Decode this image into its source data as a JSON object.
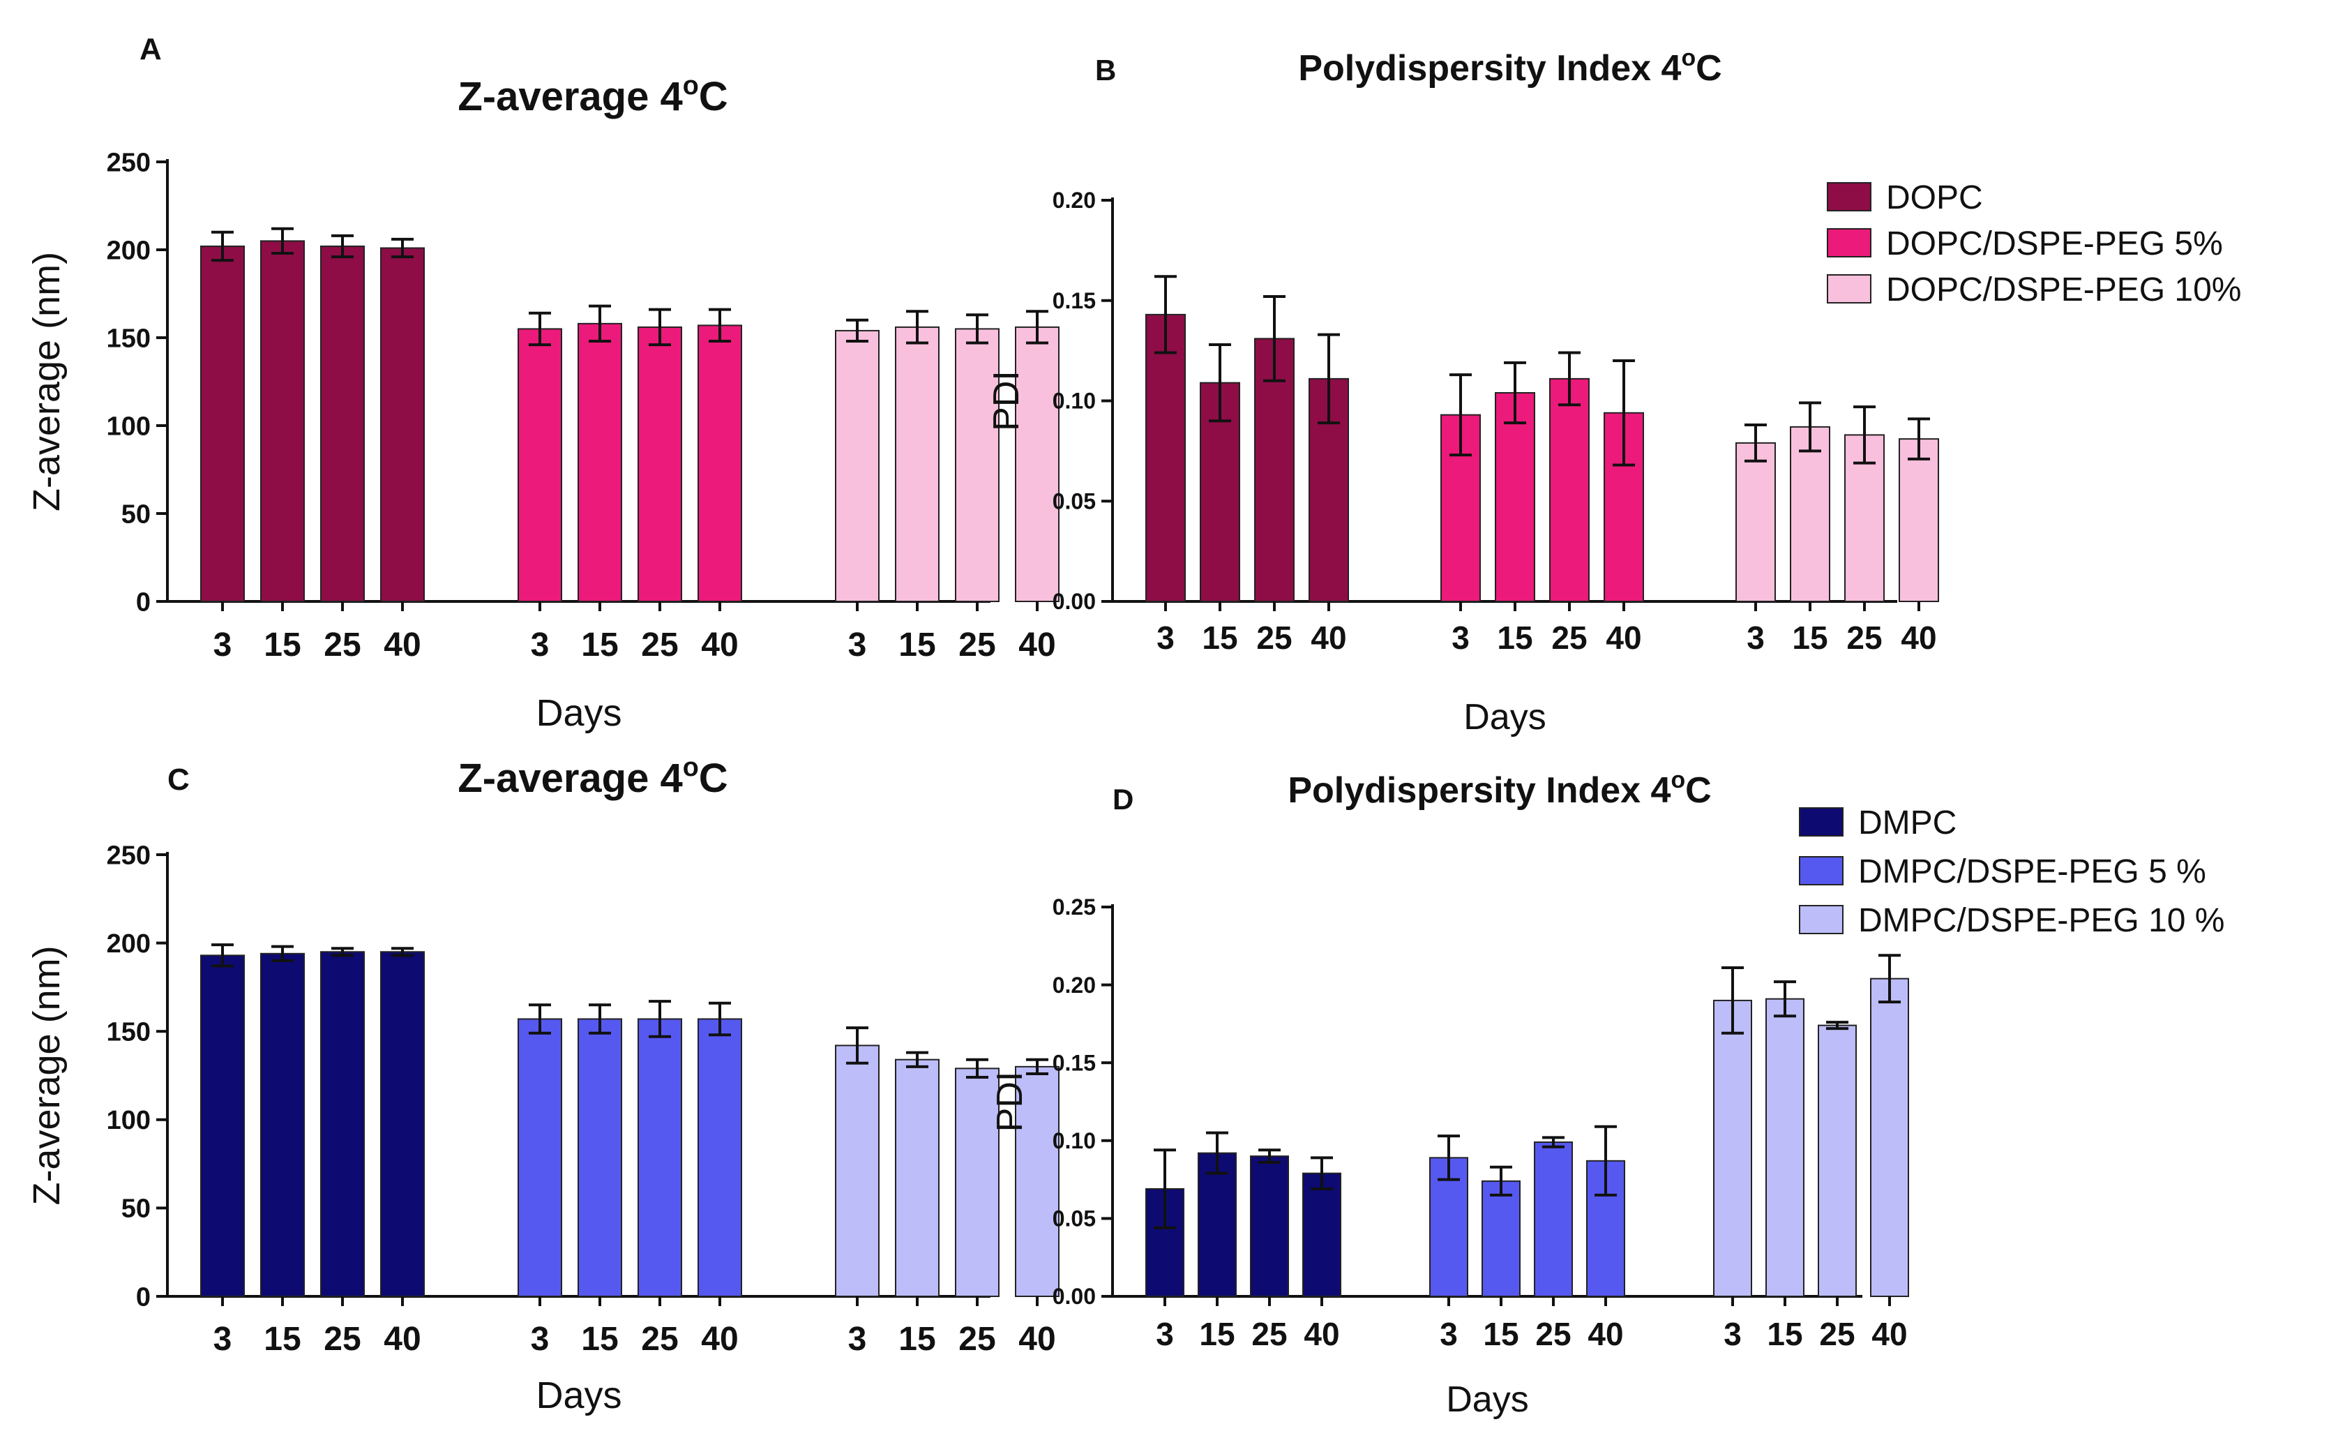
{
  "figure": {
    "panel_letters": [
      "A",
      "B",
      "C",
      "D"
    ]
  },
  "chart_data": [
    {
      "panel": "A",
      "type": "bar",
      "title": "Z-average 4",
      "title_sup": "o",
      "title_end": "C",
      "xlabel": "Days",
      "ylabel": "Z-average (nm)",
      "ylim": [
        0,
        250
      ],
      "yticks": [
        "0",
        "50",
        "100",
        "150",
        "200",
        "250"
      ],
      "categories": [
        "3",
        "15",
        "25",
        "40"
      ],
      "series": [
        {
          "name": "DOPC",
          "color": "#8e0d47",
          "values": [
            202,
            205,
            202,
            201
          ],
          "errors": [
            8,
            7,
            6,
            5
          ]
        },
        {
          "name": "DOPC/DSPE-PEG 5%",
          "color": "#ec1a7a",
          "values": [
            155,
            158,
            156,
            157
          ],
          "errors": [
            9,
            10,
            10,
            9
          ]
        },
        {
          "name": "DOPC/DSPE-PEG 10%",
          "color": "#f9c0dd",
          "values": [
            154,
            156,
            155,
            156
          ],
          "errors": [
            6,
            9,
            8,
            9
          ]
        }
      ]
    },
    {
      "panel": "B",
      "type": "bar",
      "title": "Polydispersity Index  4",
      "title_sup": "o",
      "title_end": "C",
      "xlabel": "Days",
      "ylabel": "PDI",
      "ylim": [
        0,
        0.2
      ],
      "yticks": [
        "0.00",
        "0.05",
        "0.10",
        "0.15",
        "0.20"
      ],
      "categories": [
        "3",
        "15",
        "25",
        "40"
      ],
      "legend": {
        "items": [
          "DOPC",
          "DOPC/DSPE-PEG 5%",
          "DOPC/DSPE-PEG 10%"
        ]
      },
      "series": [
        {
          "name": "DOPC",
          "color": "#8e0d47",
          "values": [
            0.143,
            0.109,
            0.131,
            0.111
          ],
          "errors": [
            0.019,
            0.019,
            0.021,
            0.022
          ]
        },
        {
          "name": "DOPC/DSPE-PEG 5%",
          "color": "#ec1a7a",
          "values": [
            0.093,
            0.104,
            0.111,
            0.094
          ],
          "errors": [
            0.02,
            0.015,
            0.013,
            0.026
          ]
        },
        {
          "name": "DOPC/DSPE-PEG 10%",
          "color": "#f9c0dd",
          "values": [
            0.079,
            0.087,
            0.083,
            0.081
          ],
          "errors": [
            0.009,
            0.012,
            0.014,
            0.01
          ]
        }
      ]
    },
    {
      "panel": "C",
      "type": "bar",
      "title": "Z-average 4",
      "title_sup": "o",
      "title_end": "C",
      "xlabel": "Days",
      "ylabel": "Z-average (nm)",
      "ylim": [
        0,
        250
      ],
      "yticks": [
        "0",
        "50",
        "100",
        "150",
        "200",
        "250"
      ],
      "categories": [
        "3",
        "15",
        "25",
        "40"
      ],
      "series": [
        {
          "name": "DMPC",
          "color": "#0d0a72",
          "values": [
            193,
            194,
            195,
            195
          ],
          "errors": [
            6,
            4,
            2,
            2
          ]
        },
        {
          "name": "DMPC/DSPE-PEG 5 %",
          "color": "#5659f0",
          "values": [
            157,
            157,
            157,
            157
          ],
          "errors": [
            8,
            8,
            10,
            9
          ]
        },
        {
          "name": "DMPC/DSPE-PEG 10 %",
          "color": "#bcbdf9",
          "values": [
            142,
            134,
            129,
            130
          ],
          "errors": [
            10,
            4,
            5,
            4
          ]
        }
      ]
    },
    {
      "panel": "D",
      "type": "bar",
      "title": "Polydispersity Index 4",
      "title_sup": "o",
      "title_end": "C",
      "xlabel": "Days",
      "ylabel": "PDI",
      "ylim": [
        0,
        0.25
      ],
      "yticks": [
        "0.00",
        "0.05",
        "0.10",
        "0.15",
        "0.20",
        "0.25"
      ],
      "categories": [
        "3",
        "15",
        "25",
        "40"
      ],
      "legend": {
        "items": [
          "DMPC",
          "DMPC/DSPE-PEG 5 %",
          "DMPC/DSPE-PEG 10 %"
        ]
      },
      "series": [
        {
          "name": "DMPC",
          "color": "#0d0a72",
          "values": [
            0.069,
            0.092,
            0.09,
            0.079
          ],
          "errors": [
            0.025,
            0.013,
            0.004,
            0.01
          ]
        },
        {
          "name": "DMPC/DSPE-PEG 5 %",
          "color": "#5659f0",
          "values": [
            0.089,
            0.074,
            0.099,
            0.087
          ],
          "errors": [
            0.014,
            0.009,
            0.003,
            0.022
          ]
        },
        {
          "name": "DMPC/DSPE-PEG 10 %",
          "color": "#bcbdf9",
          "values": [
            0.19,
            0.191,
            0.174,
            0.204
          ],
          "errors": [
            0.021,
            0.011,
            0.002,
            0.015
          ]
        }
      ]
    }
  ]
}
